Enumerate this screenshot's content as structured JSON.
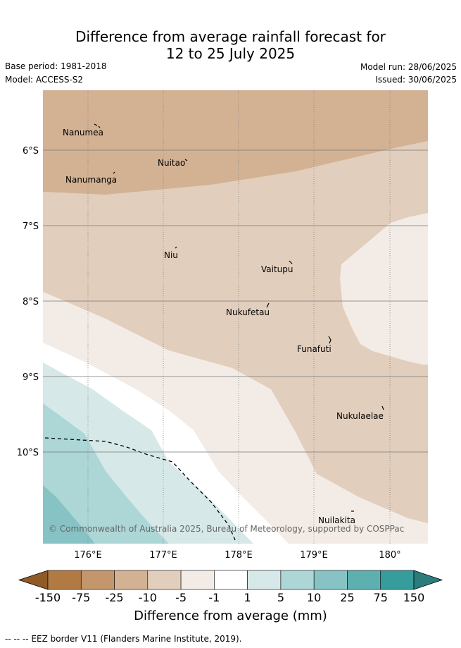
{
  "title_line1": "Difference from average rainfall forecast for",
  "title_line2": "12 to 25 July 2025",
  "base_period": "Base period: 1981-2018",
  "model": "Model: ACCESS-S2",
  "model_run": "Model run: 28/06/2025",
  "issued": "Issued: 30/06/2025",
  "map": {
    "lat_ticks": [
      "6°S",
      "7°S",
      "8°S",
      "9°S",
      "10°S"
    ],
    "lon_ticks": [
      "176°E",
      "177°E",
      "178°E",
      "179°E",
      "180°"
    ],
    "islands": [
      "Nanumea",
      "Nuitao",
      "Nanumanga",
      "Niu",
      "Vaitupu",
      "Nukufetau",
      "Funafuti",
      "Nukulaelae",
      "Nuilakita"
    ],
    "copyright": "© Commonwealth of Australia 2025, Bureau of Meteorology, supported by COSPPac"
  },
  "colorbar": {
    "labels": [
      "-150",
      "-75",
      "-25",
      "-10",
      "-5",
      "-1",
      "1",
      "5",
      "10",
      "25",
      "75",
      "150"
    ],
    "colors": [
      "#8f5a26",
      "#b07a42",
      "#c3966b",
      "#d3b293",
      "#e2cebd",
      "#f3ece6",
      "#ffffff",
      "#d6e9e8",
      "#add6d7",
      "#87c3c4",
      "#5eafb0",
      "#369c9c",
      "#2b7d7d"
    ],
    "title": "Difference from average (mm)"
  },
  "footnote": "-- -- -- EEZ border V11 (Flanders Marine Institute, 2019)."
}
